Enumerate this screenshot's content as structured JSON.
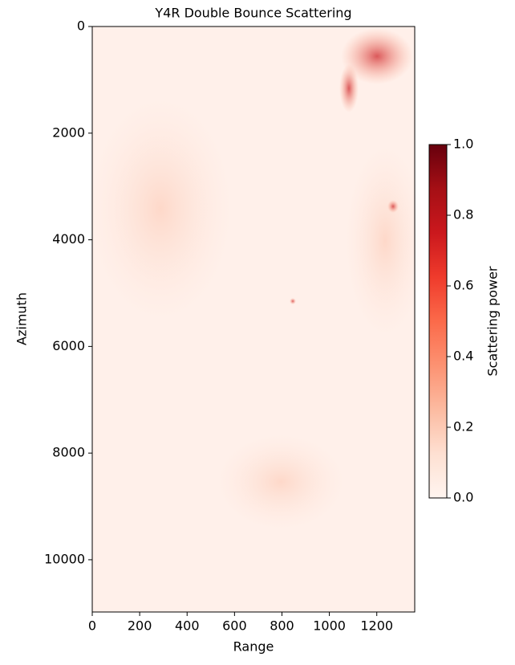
{
  "chart_data": {
    "type": "image",
    "title": "Y4R Double Bounce Scattering",
    "x_label": "Range",
    "y_label": "Azimuth",
    "xlim": [
      0,
      1360
    ],
    "xticks": [
      0,
      200,
      400,
      600,
      800,
      1000,
      1200
    ],
    "ylim": [
      10980,
      0
    ],
    "yticks": [
      0,
      2000,
      4000,
      6000,
      8000,
      10000
    ],
    "colorbar": {
      "label": "Scattering power",
      "lim": [
        0,
        1
      ],
      "ticks": [
        {
          "value": 0,
          "label": "0.0"
        },
        0.2,
        0.4,
        0.6,
        0.8,
        {
          "value": 1,
          "label": "1.0"
        }
      ],
      "colormap": [
        "#fff5f0",
        "#fee0d2",
        "#fcbba1",
        "#fc9272",
        "#fb6a4a",
        "#ef3b2c",
        "#cb181d",
        "#a50f15",
        "#67000d"
      ]
    }
  }
}
